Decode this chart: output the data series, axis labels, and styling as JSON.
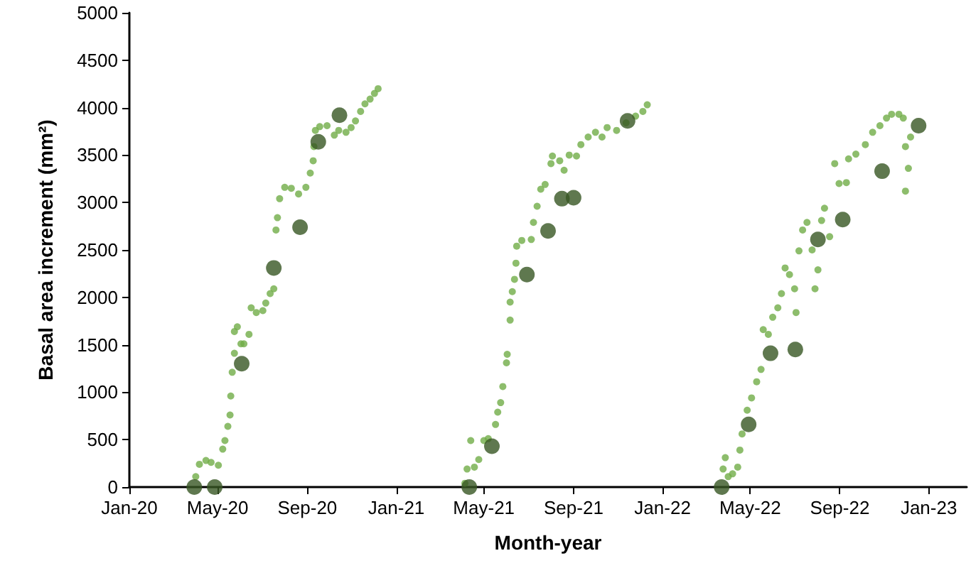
{
  "chart_data": {
    "type": "scatter",
    "xlabel": "Month-year",
    "ylabel": "Basal area increment (mm²)",
    "marker": "circle",
    "grid": false,
    "xlim": [
      "2020-01-01",
      "2023-02-22"
    ],
    "ylim": [
      0,
      5000
    ],
    "xticks": [
      {
        "value": "2020-01-01",
        "label": "Jan-20"
      },
      {
        "value": "2020-05-01",
        "label": "May-20"
      },
      {
        "value": "2020-09-01",
        "label": "Sep-20"
      },
      {
        "value": "2021-01-01",
        "label": "Jan-21"
      },
      {
        "value": "2021-05-01",
        "label": "May-21"
      },
      {
        "value": "2021-09-01",
        "label": "Sep-21"
      },
      {
        "value": "2022-01-01",
        "label": "Jan-22"
      },
      {
        "value": "2022-05-01",
        "label": "May-22"
      },
      {
        "value": "2022-09-01",
        "label": "Sep-22"
      },
      {
        "value": "2023-01-01",
        "label": "Jan-23"
      }
    ],
    "yticks": [
      0,
      500,
      1000,
      1500,
      2000,
      2500,
      3000,
      3500,
      4000,
      4500,
      5000
    ],
    "series": [
      {
        "color": "#70ad47",
        "x": [
          "2020-04-01",
          "2020-04-06",
          "2020-04-15",
          "2020-04-22",
          "2020-05-02",
          "2020-05-08",
          "2020-05-11",
          "2020-05-15",
          "2020-05-18",
          "2020-05-19",
          "2020-05-21",
          "2020-05-24",
          "2020-05-24",
          "2020-05-28",
          "2020-06-02",
          "2020-06-06",
          "2020-06-13",
          "2020-06-16",
          "2020-06-23",
          "2020-07-02",
          "2020-07-06",
          "2020-07-12",
          "2020-07-17",
          "2020-07-20",
          "2020-07-22",
          "2020-07-25",
          "2020-08-01",
          "2020-08-10",
          "2020-08-20",
          "2020-08-30",
          "2020-09-05",
          "2020-09-09",
          "2020-09-10",
          "2020-09-12",
          "2020-09-18",
          "2020-09-28",
          "2020-10-08",
          "2020-10-14",
          "2020-10-24",
          "2020-10-31",
          "2020-11-06",
          "2020-11-13",
          "2020-11-19",
          "2020-11-26",
          "2020-12-02",
          "2020-12-07",
          "2021-04-05",
          "2021-04-08",
          "2021-04-13",
          "2021-04-18",
          "2021-04-24",
          "2021-05-01",
          "2021-05-07",
          "2021-05-17",
          "2021-05-20",
          "2021-05-24",
          "2021-05-27",
          "2021-06-01",
          "2021-06-02",
          "2021-06-06",
          "2021-06-06",
          "2021-06-09",
          "2021-06-12",
          "2021-06-14",
          "2021-06-15",
          "2021-06-22",
          "2021-07-05",
          "2021-07-08",
          "2021-07-13",
          "2021-07-18",
          "2021-07-24",
          "2021-08-01",
          "2021-08-03",
          "2021-08-13",
          "2021-08-19",
          "2021-08-26",
          "2021-09-05",
          "2021-09-11",
          "2021-09-21",
          "2021-10-01",
          "2021-10-10",
          "2021-10-17",
          "2021-10-30",
          "2021-11-12",
          "2021-11-25",
          "2021-12-05",
          "2021-12-11",
          "2022-03-25",
          "2022-03-28",
          "2022-04-01",
          "2022-04-07",
          "2022-04-14",
          "2022-04-17",
          "2022-04-20",
          "2022-04-27",
          "2022-05-03",
          "2022-05-10",
          "2022-05-16",
          "2022-05-19",
          "2022-05-26",
          "2022-06-01",
          "2022-06-08",
          "2022-06-13",
          "2022-06-18",
          "2022-06-24",
          "2022-07-01",
          "2022-07-03",
          "2022-07-07",
          "2022-07-12",
          "2022-07-18",
          "2022-07-25",
          "2022-07-29",
          "2022-08-02",
          "2022-08-07",
          "2022-08-11",
          "2022-08-18",
          "2022-08-25",
          "2022-08-31",
          "2022-09-10",
          "2022-09-13",
          "2022-09-23",
          "2022-10-06",
          "2022-10-16",
          "2022-10-26",
          "2022-11-04",
          "2022-11-11",
          "2022-11-21",
          "2022-11-27",
          "2022-11-30",
          "2022-12-04",
          "2022-11-30",
          "2022-12-07"
        ],
        "values": [
          110,
          240,
          280,
          260,
          230,
          400,
          490,
          640,
          760,
          960,
          1210,
          1410,
          1640,
          1690,
          1510,
          1510,
          1610,
          1890,
          1840,
          1860,
          1940,
          2040,
          2090,
          2710,
          2840,
          3040,
          3160,
          3150,
          3090,
          3160,
          3310,
          3440,
          3590,
          3760,
          3800,
          3810,
          3710,
          3760,
          3740,
          3790,
          3860,
          3960,
          4040,
          4090,
          4150,
          4200,
          40,
          190,
          490,
          210,
          290,
          490,
          510,
          660,
          790,
          890,
          1060,
          1310,
          1400,
          1760,
          1950,
          2060,
          2190,
          2360,
          2540,
          2600,
          2610,
          2790,
          2960,
          3140,
          3190,
          3410,
          3490,
          3440,
          3340,
          3500,
          3490,
          3610,
          3690,
          3740,
          3690,
          3790,
          3760,
          3840,
          3910,
          3960,
          4030,
          190,
          310,
          110,
          140,
          210,
          390,
          560,
          810,
          940,
          1110,
          1240,
          1660,
          1610,
          1790,
          1890,
          2040,
          2310,
          2240,
          2090,
          1840,
          2490,
          2710,
          2790,
          2500,
          2090,
          2290,
          2810,
          2940,
          2640,
          3410,
          3200,
          3210,
          3460,
          3510,
          3610,
          3740,
          3810,
          3890,
          3930,
          3930,
          3890,
          3590,
          3360,
          3120,
          3690
        ]
      },
      {
        "color": "#375623",
        "x": [
          "2020-03-30",
          "2020-04-27",
          "2020-06-03",
          "2020-07-17",
          "2020-08-22",
          "2020-09-16",
          "2020-10-15",
          "2021-04-11",
          "2021-05-12",
          "2021-06-29",
          "2021-07-28",
          "2021-08-16",
          "2021-09-01",
          "2021-11-14",
          "2022-03-23",
          "2022-04-29",
          "2022-05-29",
          "2022-07-02",
          "2022-08-02",
          "2022-09-05",
          "2022-10-29",
          "2022-12-18"
        ],
        "values": [
          0,
          0,
          1300,
          2310,
          2740,
          3640,
          3920,
          0,
          430,
          2240,
          2700,
          3040,
          3050,
          3860,
          0,
          660,
          1410,
          1450,
          2610,
          2820,
          3330,
          3810
        ]
      }
    ]
  }
}
